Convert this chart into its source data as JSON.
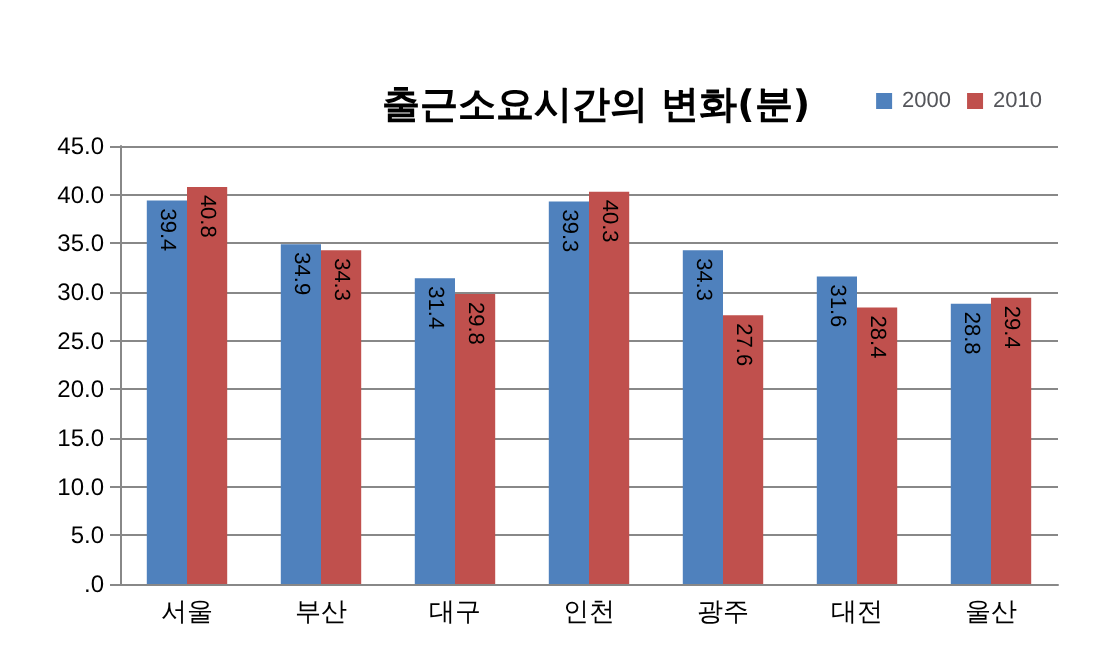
{
  "chart_data": {
    "type": "bar",
    "title": "출근소요시간의 변화(분)",
    "categories": [
      "서울",
      "부산",
      "대구",
      "인천",
      "광주",
      "대전",
      "울산"
    ],
    "series": [
      {
        "name": "2000",
        "color": "#4f81bd",
        "values": [
          39.4,
          34.9,
          31.4,
          39.3,
          34.3,
          31.6,
          28.8
        ]
      },
      {
        "name": "2010",
        "color": "#c0504d",
        "values": [
          40.8,
          34.3,
          29.8,
          40.3,
          27.6,
          28.4,
          29.4
        ]
      }
    ],
    "ylim": [
      0,
      45
    ],
    "yticks": [
      {
        "value": 0,
        "label": ".0"
      },
      {
        "value": 5,
        "label": "5.0"
      },
      {
        "value": 10,
        "label": "10.0"
      },
      {
        "value": 15,
        "label": "15.0"
      },
      {
        "value": 20,
        "label": "20.0"
      },
      {
        "value": 25,
        "label": "25.0"
      },
      {
        "value": 30,
        "label": "30.0"
      },
      {
        "value": 35,
        "label": "35.0"
      },
      {
        "value": 40,
        "label": "40.0"
      },
      {
        "value": 45,
        "label": "45.0"
      }
    ],
    "grid": "y",
    "legend": "top right",
    "data_labels": true
  }
}
